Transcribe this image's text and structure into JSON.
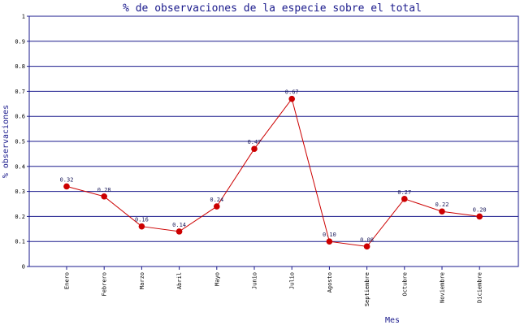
{
  "chart_data": {
    "type": "line",
    "title": "% de observaciones de la especie sobre el total",
    "xlabel": "Mes",
    "ylabel": "% observaciones",
    "categories": [
      "Enero",
      "Febrero",
      "Marzo",
      "Abril",
      "Mayo",
      "Junio",
      "Julio",
      "Agosto",
      "Septiembre",
      "Octubre",
      "Noviembre",
      "Diciembre"
    ],
    "values": [
      0.32,
      0.28,
      0.16,
      0.14,
      0.24,
      0.47,
      0.67,
      0.1,
      0.08,
      0.27,
      0.22,
      0.2
    ],
    "data_labels": [
      "0.32",
      "0.28",
      "0.16",
      "0.14",
      "0.24",
      "0.47",
      "0.67",
      "0.10",
      "0.08",
      "0.27",
      "0.22",
      "0.20"
    ],
    "ylim": [
      0,
      1
    ],
    "yticks": [
      0,
      0.1,
      0.2,
      0.3,
      0.4,
      0.5,
      0.6,
      0.7,
      0.8,
      0.9,
      1
    ],
    "ytick_labels": [
      "0",
      "0.1",
      "0.2",
      "0.3",
      "0.4",
      "0.5",
      "0.6",
      "0.7",
      "0.8",
      "0.9",
      "1"
    ],
    "grid": "horizontal",
    "colors": {
      "line": "#cc0000",
      "marker": "#cc0000",
      "grid": "#1a1a8c",
      "frame": "#1a1a8c",
      "title": "#1a1a8c"
    }
  }
}
